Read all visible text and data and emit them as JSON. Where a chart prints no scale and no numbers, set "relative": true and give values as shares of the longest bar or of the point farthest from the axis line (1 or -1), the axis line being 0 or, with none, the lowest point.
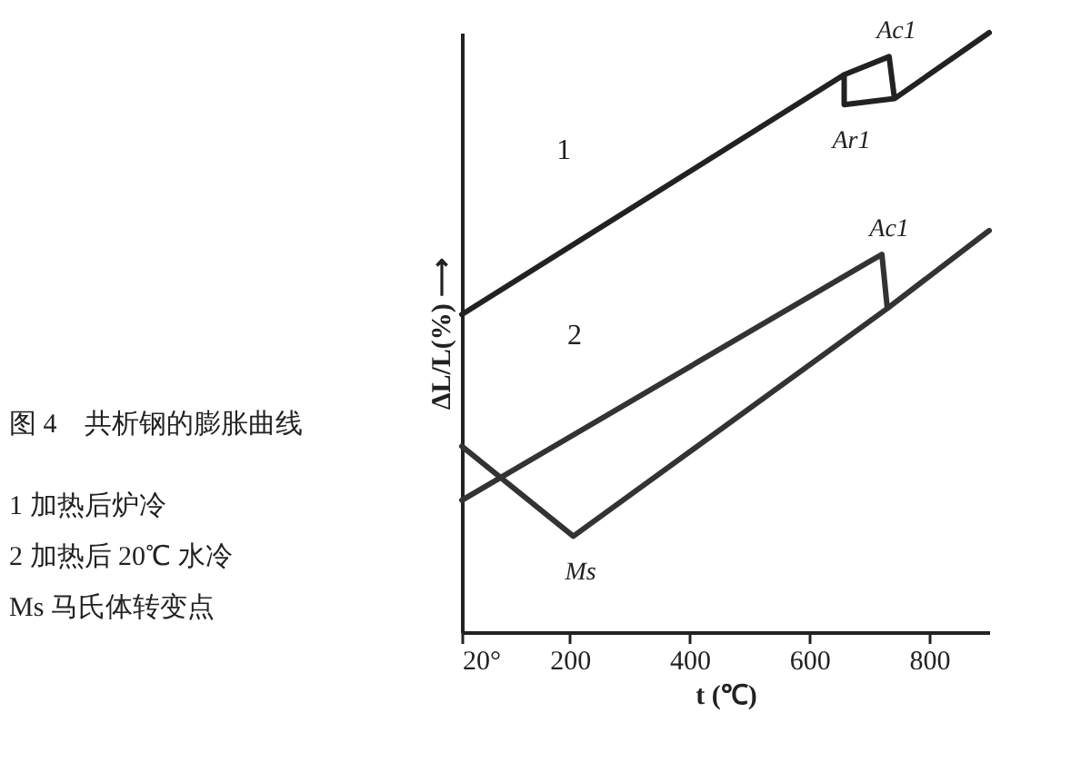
{
  "chart_data": {
    "type": "line",
    "title": "图 4　共析钢的膨胀曲线",
    "xlabel": "t (℃)",
    "ylabel": "ΔL/L(%) ⟶",
    "relative": true,
    "xlim": [
      20,
      900
    ],
    "xticks": [
      {
        "value": 20,
        "label": "20°"
      },
      200,
      400,
      600,
      800
    ],
    "grid": false,
    "legend": false,
    "marker": "none",
    "line_style": "solid",
    "series": [
      {
        "name": "1",
        "color": "#222222",
        "x": [
          20,
          658,
          733,
          742,
          900,
          742,
          658,
          658
        ],
        "values": [
          0.53,
          0.93,
          0.96,
          0.89,
          1.0,
          0.89,
          0.88,
          0.93
        ]
      },
      {
        "name": "2",
        "color": "#333333",
        "x": [
          20,
          703,
          721,
          730,
          900,
          730,
          206,
          20
        ],
        "values": [
          0.22,
          0.62,
          0.63,
          0.54,
          0.67,
          0.54,
          0.16,
          0.31
        ]
      }
    ],
    "annotations": [
      "1 加热后炉冷",
      "2 加热后 20℃ 水冷",
      "Ms 马氏体转变点",
      {
        "text": "Ac1",
        "x": 733,
        "y": 0.96
      },
      {
        "text": "Ar1",
        "x": 658,
        "y": 0.88
      },
      {
        "text": "Ac1",
        "x": 721,
        "y": 0.63
      },
      {
        "text": "Ms",
        "x": 206,
        "y": 0.16
      }
    ]
  }
}
